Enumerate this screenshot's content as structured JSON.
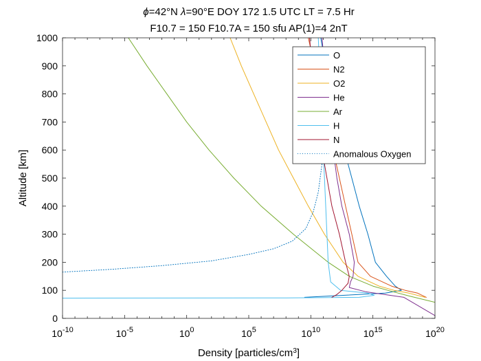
{
  "chart_data": {
    "type": "line",
    "title_line1_parts": [
      "ϕ",
      "=42°N ",
      "λ",
      "=90°E DOY 172 1.5 UTC LT = 7.5 Hr"
    ],
    "title_line2": "F10.7 = 150 F10.7A = 150 sfu AP(1)=4 2nT",
    "xlabel": "Density [particles/cm",
    "xlabel_sup": "3",
    "xlabel_end": "]",
    "ylabel": "Altitude [km]",
    "xscale": "log10",
    "xlim_exp": [
      -10,
      20
    ],
    "ylim": [
      0,
      1000
    ],
    "x_ticks": [
      {
        "base": "10",
        "exp": "-10",
        "e": -10
      },
      {
        "base": "10",
        "exp": "-5",
        "e": -5
      },
      {
        "base": "10",
        "exp": "0",
        "e": 0
      },
      {
        "base": "10",
        "exp": "5",
        "e": 5
      },
      {
        "base": "10",
        "exp": "10",
        "e": 10
      },
      {
        "base": "10",
        "exp": "15",
        "e": 15
      },
      {
        "base": "10",
        "exp": "20",
        "e": 20
      }
    ],
    "y_ticks": [
      "0",
      "100",
      "200",
      "300",
      "400",
      "500",
      "600",
      "700",
      "800",
      "900",
      "1000"
    ],
    "legend_position": "top-right",
    "series": [
      {
        "name": "O",
        "color": "#0072BD",
        "dash": false,
        "points": [
          [
            9.5,
            75
          ],
          [
            16.0,
            90
          ],
          [
            17.3,
            100
          ],
          [
            16.8,
            115
          ],
          [
            16.1,
            150
          ],
          [
            15.2,
            200
          ],
          [
            14.6,
            300
          ],
          [
            13.9,
            400
          ],
          [
            13.3,
            500
          ],
          [
            12.7,
            600
          ],
          [
            12.2,
            700
          ],
          [
            11.7,
            800
          ],
          [
            11.2,
            900
          ],
          [
            10.8,
            1000
          ]
        ]
      },
      {
        "name": "N2",
        "color": "#D95319",
        "dash": false,
        "points": [
          [
            19.3,
            75
          ],
          [
            18.6,
            90
          ],
          [
            17.6,
            100
          ],
          [
            16.5,
            115
          ],
          [
            14.8,
            150
          ],
          [
            13.8,
            200
          ],
          [
            13.3,
            300
          ],
          [
            12.8,
            400
          ],
          [
            12.3,
            500
          ],
          [
            11.8,
            600
          ],
          [
            11.3,
            700
          ],
          [
            10.8,
            800
          ],
          [
            10.3,
            900
          ],
          [
            9.8,
            1000
          ]
        ]
      },
      {
        "name": "O2",
        "color": "#EDB120",
        "dash": false,
        "points": [
          [
            19.2,
            75
          ],
          [
            17.9,
            90
          ],
          [
            16.7,
            100
          ],
          [
            15.5,
            115
          ],
          [
            13.8,
            150
          ],
          [
            12.6,
            200
          ],
          [
            11.1,
            300
          ],
          [
            9.8,
            400
          ],
          [
            8.6,
            500
          ],
          [
            7.4,
            600
          ],
          [
            6.4,
            700
          ],
          [
            5.4,
            800
          ],
          [
            4.4,
            900
          ],
          [
            3.5,
            1000
          ]
        ]
      },
      {
        "name": "He",
        "color": "#7E2F8E",
        "dash": false,
        "points": [
          [
            20,
            10
          ],
          [
            17.5,
            75
          ],
          [
            14.4,
            95
          ],
          [
            13.1,
            110
          ],
          [
            13.2,
            130
          ],
          [
            13.4,
            150
          ],
          [
            13.5,
            200
          ],
          [
            13.1,
            300
          ],
          [
            12.5,
            400
          ],
          [
            12.1,
            500
          ],
          [
            11.8,
            600
          ],
          [
            11.5,
            700
          ],
          [
            11.3,
            800
          ],
          [
            11.1,
            900
          ],
          [
            10.9,
            1000
          ]
        ]
      },
      {
        "name": "Ar",
        "color": "#77AC30",
        "dash": false,
        "points": [
          [
            20,
            57
          ],
          [
            17.9,
            80
          ],
          [
            16.2,
            100
          ],
          [
            15.0,
            115
          ],
          [
            13.1,
            150
          ],
          [
            11.4,
            200
          ],
          [
            8.6,
            300
          ],
          [
            6.0,
            400
          ],
          [
            3.8,
            500
          ],
          [
            1.8,
            600
          ],
          [
            0.0,
            700
          ],
          [
            -1.6,
            800
          ],
          [
            -3.2,
            900
          ],
          [
            -4.7,
            1000
          ]
        ]
      },
      {
        "name": "H",
        "color": "#4DBEEE",
        "dash": false,
        "points": [
          [
            -10,
            72
          ],
          [
            8.0,
            73
          ],
          [
            13.9,
            75
          ],
          [
            15.1,
            82
          ],
          [
            14.6,
            90
          ],
          [
            12.4,
            100
          ],
          [
            11.6,
            130
          ],
          [
            11.4,
            200
          ],
          [
            11.3,
            300
          ],
          [
            11.2,
            400
          ],
          [
            11.1,
            500
          ],
          [
            11.0,
            600
          ],
          [
            10.9,
            700
          ],
          [
            10.8,
            800
          ],
          [
            10.7,
            900
          ],
          [
            10.6,
            1000
          ]
        ]
      },
      {
        "name": "N",
        "color": "#A2142F",
        "dash": false,
        "points": [
          [
            11.7,
            75
          ],
          [
            12.1,
            85
          ],
          [
            12.5,
            100
          ],
          [
            12.8,
            115
          ],
          [
            13.0,
            125
          ],
          [
            13.1,
            150
          ],
          [
            12.8,
            200
          ],
          [
            12.3,
            300
          ],
          [
            11.7,
            400
          ],
          [
            11.3,
            500
          ],
          [
            10.9,
            600
          ],
          [
            10.6,
            700
          ],
          [
            10.3,
            800
          ],
          [
            10.1,
            900
          ],
          [
            9.9,
            1000
          ]
        ]
      },
      {
        "name": "Anomalous Oxygen",
        "color": "#0072BD",
        "dash": true,
        "points": [
          [
            -10,
            165
          ],
          [
            -6,
            175
          ],
          [
            -2,
            188
          ],
          [
            2,
            205
          ],
          [
            5,
            228
          ],
          [
            7,
            248
          ],
          [
            8.5,
            275
          ],
          [
            9.6,
            320
          ],
          [
            10.2,
            380
          ],
          [
            10.6,
            450
          ],
          [
            10.9,
            550
          ]
        ]
      }
    ]
  }
}
